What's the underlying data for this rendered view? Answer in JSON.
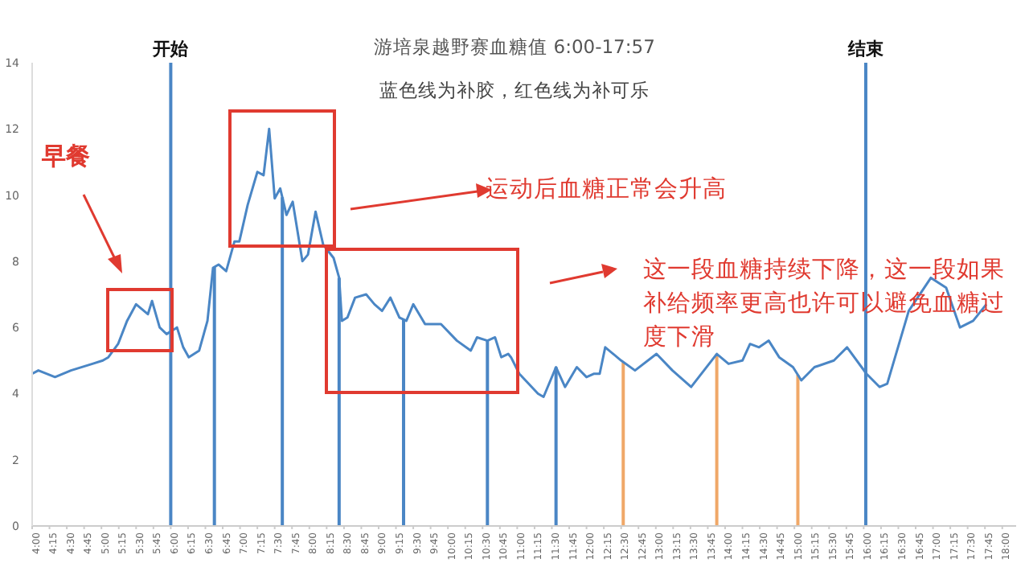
{
  "chart_data": {
    "type": "line",
    "title": "游培泉越野赛血糖值 6:00-17:57",
    "subtitle": "蓝色线为补胶，红色线为补可乐",
    "annotations": [
      "早餐",
      "运动后血糖正常会升高",
      "这一段血糖持续下降，这一段如果补给频率更高也许可以避免血糖过度下滑"
    ],
    "x": [
      4.0,
      4.09,
      4.33,
      4.56,
      4.87,
      5.02,
      5.1,
      5.24,
      5.37,
      5.5,
      5.67,
      5.73,
      5.84,
      5.94,
      6.09,
      6.18,
      6.26,
      6.41,
      6.53,
      6.61,
      6.69,
      6.8,
      6.92,
      6.99,
      7.11,
      7.25,
      7.34,
      7.42,
      7.5,
      7.58,
      7.67,
      7.76,
      7.9,
      7.98,
      8.09,
      8.2,
      8.35,
      8.43,
      8.47,
      8.55,
      8.66,
      8.82,
      8.94,
      9.05,
      9.17,
      9.3,
      9.4,
      9.5,
      9.67,
      9.9,
      10.13,
      10.33,
      10.42,
      10.57,
      10.68,
      10.77,
      10.87,
      10.91,
      11.03,
      11.3,
      11.38,
      11.56,
      11.69,
      11.86,
      12.0,
      12.11,
      12.19,
      12.27,
      12.5,
      12.7,
      13.01,
      13.24,
      13.51,
      13.88,
      14.05,
      14.25,
      14.36,
      14.49,
      14.63,
      14.78,
      14.98,
      15.1,
      15.29,
      15.57,
      15.76,
      16.04,
      16.23,
      16.34,
      16.65,
      16.97,
      17.19,
      17.39,
      17.58,
      17.77
    ],
    "series": [
      {
        "color": "#4a86c5",
        "values": [
          4.6,
          4.7,
          4.5,
          4.7,
          4.9,
          5.0,
          5.1,
          5.5,
          6.2,
          6.7,
          6.4,
          6.8,
          6.0,
          5.8,
          6.0,
          5.4,
          5.1,
          5.3,
          6.2,
          7.8,
          7.9,
          7.7,
          8.6,
          8.6,
          9.7,
          10.7,
          10.6,
          12.0,
          9.9,
          10.2,
          9.4,
          9.8,
          8.0,
          8.2,
          9.5,
          8.5,
          8.1,
          7.5,
          6.2,
          6.3,
          6.9,
          7.0,
          6.7,
          6.5,
          6.9,
          6.3,
          6.2,
          6.7,
          6.1,
          6.1,
          5.6,
          5.3,
          5.7,
          5.6,
          5.7,
          5.1,
          5.2,
          5.1,
          4.6,
          4.0,
          3.9,
          4.8,
          4.2,
          4.8,
          4.5,
          4.6,
          4.6,
          5.4,
          5.0,
          4.7,
          5.2,
          4.7,
          4.2,
          5.2,
          4.9,
          5.0,
          5.5,
          5.4,
          5.6,
          5.1,
          4.8,
          4.4,
          4.8,
          5.0,
          5.4,
          4.6,
          4.2,
          4.3,
          6.5,
          7.5,
          7.2,
          6.0,
          6.2,
          6.7
        ]
      }
    ],
    "xlim": [
      4,
      18.2
    ],
    "xticks": [
      {
        "value": 4,
        "label": "4:00"
      },
      {
        "value": 4.25,
        "label": "4:15"
      },
      {
        "value": 4.5,
        "label": "4:30"
      },
      {
        "value": 4.75,
        "label": "4:45"
      },
      {
        "value": 5,
        "label": "5:00"
      },
      {
        "value": 5.25,
        "label": "5:15"
      },
      {
        "value": 5.5,
        "label": "5:30"
      },
      {
        "value": 5.75,
        "label": "5:45"
      },
      {
        "value": 6,
        "label": "6:00"
      },
      {
        "value": 6.25,
        "label": "6:15"
      },
      {
        "value": 6.5,
        "label": "6:30"
      },
      {
        "value": 6.75,
        "label": "6:45"
      },
      {
        "value": 7,
        "label": "7:00"
      },
      {
        "value": 7.25,
        "label": "7:15"
      },
      {
        "value": 7.5,
        "label": "7:30"
      },
      {
        "value": 7.75,
        "label": "7:45"
      },
      {
        "value": 8,
        "label": "8:00"
      },
      {
        "value": 8.25,
        "label": "8:15"
      },
      {
        "value": 8.5,
        "label": "8:30"
      },
      {
        "value": 8.75,
        "label": "8:45"
      },
      {
        "value": 9,
        "label": "9:00"
      },
      {
        "value": 9.25,
        "label": "9:15"
      },
      {
        "value": 9.5,
        "label": "9:30"
      },
      {
        "value": 9.75,
        "label": "9:45"
      },
      {
        "value": 10,
        "label": "10:00"
      },
      {
        "value": 10.25,
        "label": "10:15"
      },
      {
        "value": 10.5,
        "label": "10:30"
      },
      {
        "value": 10.75,
        "label": "10:45"
      },
      {
        "value": 11,
        "label": "11:00"
      },
      {
        "value": 11.25,
        "label": "11:15"
      },
      {
        "value": 11.5,
        "label": "11:30"
      },
      {
        "value": 11.75,
        "label": "11:45"
      },
      {
        "value": 12,
        "label": "12:00"
      },
      {
        "value": 12.25,
        "label": "12:15"
      },
      {
        "value": 12.5,
        "label": "12:30"
      },
      {
        "value": 12.75,
        "label": "12:45"
      },
      {
        "value": 13,
        "label": "13:00"
      },
      {
        "value": 13.25,
        "label": "13:15"
      },
      {
        "value": 13.5,
        "label": "13:30"
      },
      {
        "value": 13.75,
        "label": "13:45"
      },
      {
        "value": 14,
        "label": "14:00"
      },
      {
        "value": 14.25,
        "label": "14:15"
      },
      {
        "value": 14.5,
        "label": "14:30"
      },
      {
        "value": 14.75,
        "label": "14:45"
      },
      {
        "value": 15,
        "label": "15:00"
      },
      {
        "value": 15.25,
        "label": "15:15"
      },
      {
        "value": 15.5,
        "label": "15:30"
      },
      {
        "value": 15.75,
        "label": "15:45"
      },
      {
        "value": 16,
        "label": "16:00"
      },
      {
        "value": 16.25,
        "label": "16:15"
      },
      {
        "value": 16.5,
        "label": "16:30"
      },
      {
        "value": 16.75,
        "label": "16:45"
      },
      {
        "value": 17,
        "label": "17:00"
      },
      {
        "value": 17.25,
        "label": "17:15"
      },
      {
        "value": 17.5,
        "label": "17:30"
      },
      {
        "value": 17.75,
        "label": "17:45"
      },
      {
        "value": 18,
        "label": "18:00"
      }
    ],
    "ylim": [
      0,
      14
    ],
    "yticks": [
      0,
      2,
      4,
      6,
      8,
      10,
      12,
      14
    ],
    "ref_lines": [
      {
        "axis": "x",
        "value": 6.0,
        "label": "开始",
        "color": "#4a86c5"
      },
      {
        "axis": "x",
        "value": 6.63,
        "color": "#4a86c5"
      },
      {
        "axis": "x",
        "value": 7.61,
        "color": "#4a86c5"
      },
      {
        "axis": "x",
        "value": 8.43,
        "color": "#4a86c5"
      },
      {
        "axis": "x",
        "value": 9.36,
        "color": "#4a86c5"
      },
      {
        "axis": "x",
        "value": 10.57,
        "color": "#4a86c5"
      },
      {
        "axis": "x",
        "value": 11.56,
        "color": "#4a86c5"
      },
      {
        "axis": "x",
        "value": 12.53,
        "color": "#f0a868"
      },
      {
        "axis": "x",
        "value": 13.88,
        "color": "#f0a868"
      },
      {
        "axis": "x",
        "value": 15.05,
        "color": "#f0a868"
      },
      {
        "axis": "x",
        "value": 16.03,
        "label": "结束",
        "color": "#4a86c5"
      }
    ]
  }
}
